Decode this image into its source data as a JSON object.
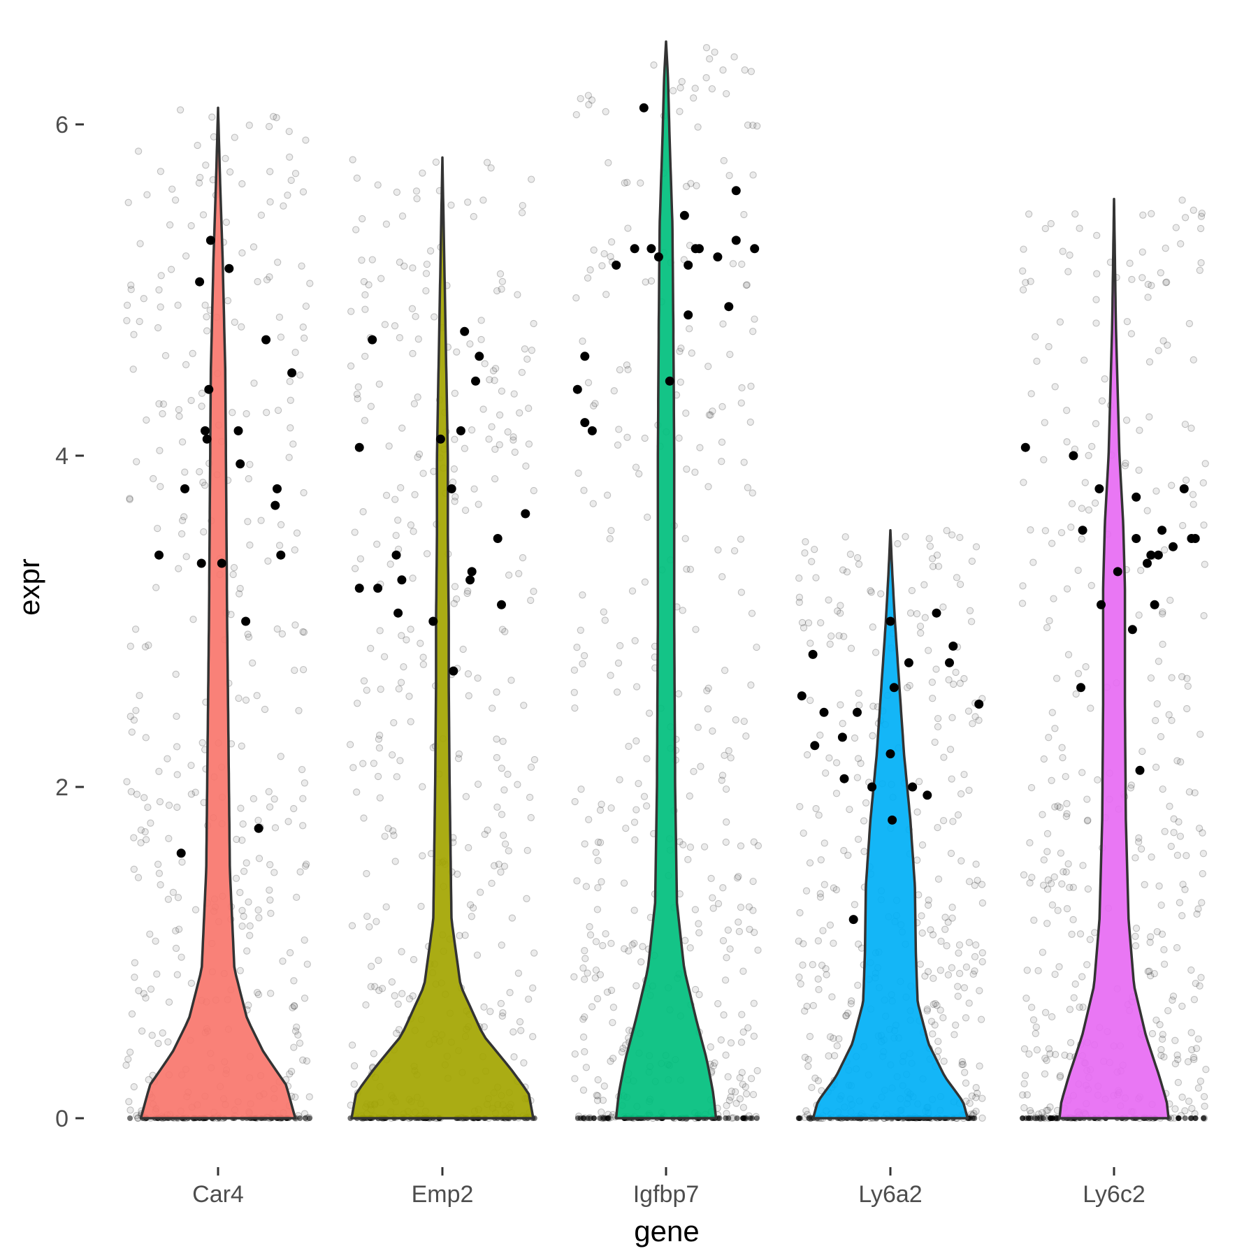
{
  "chart_data": {
    "type": "violin",
    "xlabel": "gene",
    "ylabel": "expr",
    "ylim": [
      -0.2,
      6.5
    ],
    "yticks": [
      0,
      2,
      4,
      6
    ],
    "grid": false,
    "categories": [
      "Car4",
      "Emp2",
      "Igfbp7",
      "Ly6a2",
      "Ly6c2"
    ],
    "colors": {
      "Car4": "#F8766D",
      "Emp2": "#A3A500",
      "Igfbp7": "#00BF7D",
      "Ly6a2": "#00B0F6",
      "Ly6c2": "#E76BF3"
    },
    "series": [
      {
        "gene": "Car4",
        "max": 6.1,
        "density": [
          [
            0,
            0.85
          ],
          [
            0.2,
            0.75
          ],
          [
            0.4,
            0.5
          ],
          [
            0.6,
            0.32
          ],
          [
            0.9,
            0.18
          ],
          [
            1.5,
            0.13
          ],
          [
            3,
            0.1
          ],
          [
            4.5,
            0.08
          ],
          [
            5.2,
            0.05
          ],
          [
            5.7,
            0.02
          ],
          [
            6.1,
            0
          ]
        ],
        "points_range": [
          0,
          6.1
        ],
        "highlighted": [
          [
            0.45,
            4.4
          ],
          [
            0.3,
            1.6
          ],
          [
            0.18,
            3.4
          ],
          [
            0.32,
            3.8
          ],
          [
            0.41,
            3.35
          ],
          [
            0.43,
            4.15
          ],
          [
            0.44,
            4.1
          ],
          [
            0.46,
            5.3
          ],
          [
            0.4,
            5.05
          ],
          [
            0.52,
            3.35
          ],
          [
            0.56,
            5.13
          ],
          [
            0.61,
            4.15
          ],
          [
            0.62,
            3.95
          ],
          [
            0.65,
            3.0
          ],
          [
            0.72,
            1.75
          ],
          [
            0.76,
            4.7
          ],
          [
            0.82,
            3.8
          ],
          [
            0.81,
            3.7
          ],
          [
            0.84,
            3.4
          ],
          [
            0.9,
            4.5
          ]
        ]
      },
      {
        "gene": "Emp2",
        "max": 5.8,
        "density": [
          [
            0,
            1.0
          ],
          [
            0.15,
            0.95
          ],
          [
            0.3,
            0.75
          ],
          [
            0.5,
            0.45
          ],
          [
            0.8,
            0.2
          ],
          [
            1.2,
            0.1
          ],
          [
            2,
            0.08
          ],
          [
            2.6,
            0.07
          ],
          [
            3,
            0.07
          ],
          [
            3.5,
            0.06
          ],
          [
            4,
            0.06
          ],
          [
            4.6,
            0.04
          ],
          [
            5.2,
            0.02
          ],
          [
            5.8,
            0
          ]
        ],
        "points_range": [
          0,
          5.8
        ],
        "highlighted": [
          [
            0.05,
            4.05
          ],
          [
            0.05,
            3.2
          ],
          [
            0.15,
            3.2
          ],
          [
            0.12,
            4.7
          ],
          [
            0.25,
            3.4
          ],
          [
            0.28,
            3.25
          ],
          [
            0.26,
            3.05
          ],
          [
            0.45,
            3.0
          ],
          [
            0.49,
            4.1
          ],
          [
            0.55,
            3.8
          ],
          [
            0.56,
            2.7
          ],
          [
            0.6,
            4.15
          ],
          [
            0.62,
            4.75
          ],
          [
            0.65,
            3.25
          ],
          [
            0.66,
            3.3
          ],
          [
            0.68,
            4.45
          ],
          [
            0.7,
            4.6
          ],
          [
            0.8,
            3.5
          ],
          [
            0.82,
            3.1
          ],
          [
            0.95,
            3.65
          ]
        ]
      },
      {
        "gene": "Igfbp7",
        "max": 6.5,
        "density": [
          [
            0,
            0.55
          ],
          [
            0.15,
            0.52
          ],
          [
            0.35,
            0.45
          ],
          [
            0.6,
            0.33
          ],
          [
            0.9,
            0.2
          ],
          [
            1.3,
            0.12
          ],
          [
            2,
            0.1
          ],
          [
            3,
            0.09
          ],
          [
            4,
            0.09
          ],
          [
            4.8,
            0.08
          ],
          [
            5.4,
            0.07
          ],
          [
            5.9,
            0.04
          ],
          [
            6.3,
            0.02
          ],
          [
            6.5,
            0
          ]
        ],
        "points_range": [
          0,
          6.5
        ],
        "highlighted": [
          [
            0.02,
            4.4
          ],
          [
            0.06,
            4.6
          ],
          [
            0.06,
            4.2
          ],
          [
            0.1,
            4.15
          ],
          [
            0.23,
            5.15
          ],
          [
            0.33,
            5.25
          ],
          [
            0.38,
            6.1
          ],
          [
            0.42,
            5.25
          ],
          [
            0.46,
            5.2
          ],
          [
            0.52,
            4.45
          ],
          [
            0.6,
            5.45
          ],
          [
            0.62,
            5.15
          ],
          [
            0.62,
            4.85
          ],
          [
            0.66,
            5.25
          ],
          [
            0.68,
            5.25
          ],
          [
            0.78,
            5.2
          ],
          [
            0.84,
            4.9
          ],
          [
            0.88,
            5.3
          ],
          [
            0.88,
            5.6
          ],
          [
            0.98,
            5.25
          ]
        ]
      },
      {
        "gene": "Ly6a2",
        "max": 3.55,
        "density": [
          [
            0,
            0.85
          ],
          [
            0.1,
            0.8
          ],
          [
            0.25,
            0.6
          ],
          [
            0.45,
            0.42
          ],
          [
            0.7,
            0.3
          ],
          [
            1,
            0.28
          ],
          [
            1.4,
            0.27
          ],
          [
            1.8,
            0.22
          ],
          [
            2.2,
            0.15
          ],
          [
            2.6,
            0.1
          ],
          [
            3,
            0.05
          ],
          [
            3.3,
            0.02
          ],
          [
            3.55,
            0
          ]
        ],
        "points_range": [
          0,
          3.55
        ],
        "highlighted": [
          [
            0.02,
            2.55
          ],
          [
            0.08,
            2.8
          ],
          [
            0.09,
            2.25
          ],
          [
            0.14,
            2.45
          ],
          [
            0.24,
            2.3
          ],
          [
            0.25,
            2.05
          ],
          [
            0.32,
            2.45
          ],
          [
            0.3,
            1.2
          ],
          [
            0.4,
            2.0
          ],
          [
            0.5,
            3.0
          ],
          [
            0.5,
            2.2
          ],
          [
            0.51,
            1.8
          ],
          [
            0.52,
            2.6
          ],
          [
            0.6,
            2.75
          ],
          [
            0.62,
            2.0
          ],
          [
            0.7,
            1.95
          ],
          [
            0.75,
            3.05
          ],
          [
            0.82,
            2.75
          ],
          [
            0.84,
            2.85
          ],
          [
            0.98,
            2.5
          ]
        ]
      },
      {
        "gene": "Ly6c2",
        "max": 5.55,
        "density": [
          [
            0,
            0.6
          ],
          [
            0.1,
            0.58
          ],
          [
            0.25,
            0.5
          ],
          [
            0.5,
            0.35
          ],
          [
            0.8,
            0.22
          ],
          [
            1.2,
            0.16
          ],
          [
            1.8,
            0.13
          ],
          [
            2.5,
            0.12
          ],
          [
            3.2,
            0.12
          ],
          [
            3.6,
            0.1
          ],
          [
            4,
            0.06
          ],
          [
            4.4,
            0.04
          ],
          [
            4.8,
            0.02
          ],
          [
            5.55,
            0
          ]
        ],
        "points_range": [
          0,
          5.55
        ],
        "highlighted": [
          [
            0.02,
            4.05
          ],
          [
            0.28,
            4.0
          ],
          [
            0.33,
            3.55
          ],
          [
            0.32,
            2.6
          ],
          [
            0.42,
            3.8
          ],
          [
            0.43,
            3.1
          ],
          [
            0.52,
            3.3
          ],
          [
            0.6,
            2.95
          ],
          [
            0.62,
            3.75
          ],
          [
            0.62,
            3.5
          ],
          [
            0.64,
            2.1
          ],
          [
            0.68,
            3.35
          ],
          [
            0.7,
            3.4
          ],
          [
            0.72,
            3.1
          ],
          [
            0.74,
            3.4
          ],
          [
            0.76,
            3.55
          ],
          [
            0.82,
            3.45
          ],
          [
            0.88,
            3.8
          ],
          [
            0.92,
            3.5
          ],
          [
            0.94,
            3.5
          ]
        ]
      }
    ]
  }
}
